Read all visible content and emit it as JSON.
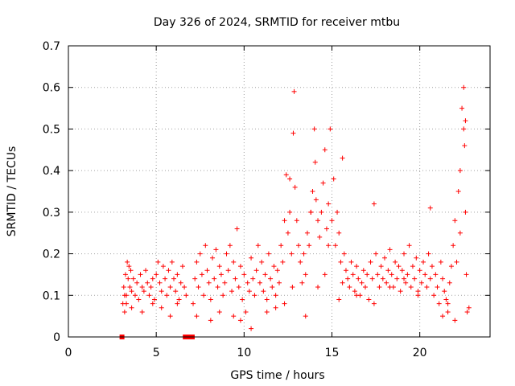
{
  "chart_data": {
    "type": "scatter",
    "title": "Day 326 of 2024, SRMTID for receiver mtbu",
    "xlabel": "GPS time / hours",
    "ylabel": "SRMTID / TECUs",
    "xlim": [
      0,
      24
    ],
    "ylim": [
      0,
      0.7
    ],
    "xticks": [
      0,
      5,
      10,
      15,
      20
    ],
    "yticks": [
      0,
      0.1,
      0.2,
      0.3,
      0.4,
      0.5,
      0.6,
      0.7
    ],
    "xtick_labels": [
      "0",
      "5",
      "10",
      "15",
      "20"
    ],
    "ytick_labels": [
      "0",
      "0.1",
      "0.2",
      "0.3",
      "0.4",
      "0.5",
      "0.6",
      "0.7"
    ],
    "grid": true,
    "marker": "+",
    "color": "#ff0000",
    "zero_markers_x": [
      3.05,
      6.65,
      6.85,
      7.05
    ],
    "series": [
      {
        "name": "SRMTID",
        "x": [
          3.1,
          3.15,
          3.2,
          3.25,
          3.3,
          3.35,
          3.4,
          3.45,
          3.5,
          3.55,
          3.6,
          3.7,
          3.8,
          3.9,
          4.0,
          4.1,
          4.2,
          4.3,
          4.4,
          4.5,
          4.6,
          4.7,
          4.8,
          4.9,
          5.0,
          5.1,
          5.2,
          5.3,
          5.4,
          5.5,
          5.6,
          5.7,
          5.8,
          5.9,
          6.0,
          6.1,
          6.2,
          6.3,
          6.4,
          6.5,
          6.6,
          6.7,
          7.1,
          7.2,
          7.3,
          7.4,
          7.5,
          7.6,
          7.7,
          7.8,
          7.9,
          8.0,
          8.1,
          8.2,
          8.3,
          8.4,
          8.5,
          8.6,
          8.7,
          8.8,
          8.9,
          9.0,
          9.1,
          9.2,
          9.3,
          9.4,
          9.5,
          9.6,
          9.7,
          9.8,
          9.9,
          10.0,
          10.1,
          10.2,
          10.3,
          10.4,
          10.5,
          10.6,
          10.7,
          10.8,
          10.9,
          11.0,
          11.1,
          11.2,
          11.3,
          11.4,
          11.5,
          11.6,
          11.7,
          11.8,
          11.9,
          12.0,
          12.1,
          12.2,
          12.3,
          12.4,
          12.5,
          12.6,
          12.7,
          12.8,
          12.85,
          12.9,
          13.0,
          13.1,
          13.2,
          13.3,
          13.4,
          13.5,
          13.6,
          13.7,
          13.8,
          13.9,
          14.0,
          14.05,
          14.1,
          14.2,
          14.3,
          14.4,
          14.5,
          14.6,
          14.7,
          14.8,
          14.9,
          15.0,
          15.1,
          15.2,
          15.3,
          15.4,
          15.5,
          15.6,
          15.7,
          15.8,
          15.9,
          16.0,
          16.1,
          16.2,
          16.3,
          16.4,
          16.5,
          16.6,
          16.7,
          16.8,
          16.9,
          17.0,
          17.1,
          17.2,
          17.3,
          17.4,
          17.5,
          17.6,
          17.7,
          17.8,
          17.9,
          18.0,
          18.1,
          18.2,
          18.3,
          18.4,
          18.5,
          18.6,
          18.7,
          18.8,
          18.9,
          19.0,
          19.1,
          19.2,
          19.3,
          19.4,
          19.5,
          19.6,
          19.7,
          19.8,
          19.9,
          20.0,
          20.1,
          20.2,
          20.3,
          20.4,
          20.5,
          20.6,
          20.7,
          20.8,
          20.9,
          21.0,
          21.1,
          21.2,
          21.3,
          21.4,
          21.5,
          21.6,
          21.7,
          21.8,
          21.9,
          22.0,
          22.1,
          22.2,
          22.3,
          22.4,
          22.5,
          22.55,
          22.6,
          22.65,
          22.7,
          22.8,
          3.2,
          3.3,
          3.6,
          4.2,
          4.8,
          5.3,
          5.8,
          6.2,
          7.3,
          8.1,
          8.6,
          9.4,
          9.8,
          10.4,
          11.3,
          11.8,
          12.3,
          12.6,
          12.75,
          13.5,
          13.8,
          14.2,
          14.6,
          14.8,
          15.4,
          15.6,
          16.4,
          17.4,
          18.3,
          19.1,
          19.9,
          20.6,
          21.3,
          21.6,
          22.0,
          22.3,
          22.5,
          22.6
        ],
        "y": [
          0.08,
          0.12,
          0.06,
          0.15,
          0.1,
          0.18,
          0.14,
          0.17,
          0.12,
          0.16,
          0.11,
          0.14,
          0.1,
          0.13,
          0.09,
          0.15,
          0.12,
          0.11,
          0.16,
          0.13,
          0.1,
          0.12,
          0.14,
          0.09,
          0.15,
          0.18,
          0.13,
          0.11,
          0.17,
          0.14,
          0.1,
          0.16,
          0.12,
          0.18,
          0.14,
          0.11,
          0.15,
          0.09,
          0.13,
          0.17,
          0.12,
          0.1,
          0.08,
          0.14,
          0.18,
          0.12,
          0.2,
          0.15,
          0.1,
          0.22,
          0.16,
          0.13,
          0.09,
          0.19,
          0.14,
          0.21,
          0.12,
          0.17,
          0.15,
          0.1,
          0.13,
          0.2,
          0.16,
          0.22,
          0.11,
          0.18,
          0.14,
          0.26,
          0.12,
          0.17,
          0.09,
          0.15,
          0.06,
          0.13,
          0.11,
          0.19,
          0.14,
          0.1,
          0.16,
          0.22,
          0.13,
          0.18,
          0.11,
          0.15,
          0.09,
          0.2,
          0.14,
          0.12,
          0.17,
          0.1,
          0.16,
          0.13,
          0.22,
          0.18,
          0.28,
          0.39,
          0.25,
          0.3,
          0.2,
          0.49,
          0.59,
          0.36,
          0.28,
          0.22,
          0.18,
          0.13,
          0.2,
          0.15,
          0.25,
          0.22,
          0.3,
          0.35,
          0.5,
          0.42,
          0.33,
          0.28,
          0.24,
          0.3,
          0.37,
          0.45,
          0.26,
          0.32,
          0.5,
          0.28,
          0.38,
          0.22,
          0.3,
          0.25,
          0.18,
          0.43,
          0.2,
          0.16,
          0.14,
          0.12,
          0.18,
          0.15,
          0.11,
          0.17,
          0.14,
          0.1,
          0.13,
          0.16,
          0.12,
          0.15,
          0.09,
          0.18,
          0.14,
          0.32,
          0.2,
          0.15,
          0.12,
          0.17,
          0.14,
          0.19,
          0.13,
          0.16,
          0.21,
          0.15,
          0.12,
          0.18,
          0.14,
          0.17,
          0.11,
          0.16,
          0.2,
          0.13,
          0.15,
          0.22,
          0.12,
          0.17,
          0.14,
          0.19,
          0.11,
          0.16,
          0.13,
          0.18,
          0.15,
          0.12,
          0.2,
          0.14,
          0.17,
          0.1,
          0.15,
          0.12,
          0.08,
          0.18,
          0.14,
          0.11,
          0.09,
          0.06,
          0.13,
          0.17,
          0.22,
          0.28,
          0.18,
          0.35,
          0.25,
          0.55,
          0.6,
          0.46,
          0.3,
          0.15,
          0.06,
          0.07,
          0.1,
          0.08,
          0.07,
          0.06,
          0.08,
          0.07,
          0.05,
          0.08,
          0.05,
          0.04,
          0.06,
          0.05,
          0.04,
          0.02,
          0.06,
          0.07,
          0.08,
          0.38,
          0.12,
          0.05,
          0.3,
          0.12,
          0.15,
          0.22,
          0.09,
          0.13,
          0.1,
          0.08,
          0.12,
          0.14,
          0.1,
          0.31,
          0.05,
          0.08,
          0.04,
          0.4,
          0.5,
          0.52
        ]
      }
    ]
  }
}
